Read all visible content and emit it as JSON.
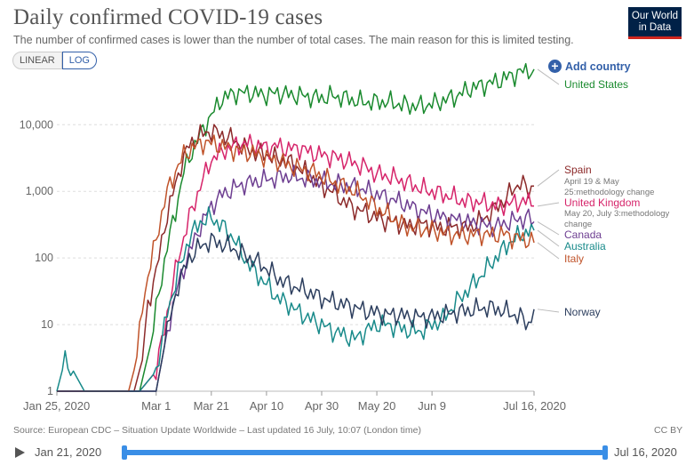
{
  "header": {
    "title": "Daily confirmed COVID-19 cases",
    "subtitle": "The number of confirmed cases is lower than the number of total cases. The main reason for this is limited testing.",
    "logo_line1": "Our World",
    "logo_line2": "in Data"
  },
  "controls": {
    "linear_label": "LINEAR",
    "log_label": "LOG",
    "add_country_label": "Add country"
  },
  "chart_data": {
    "type": "line",
    "title": "Daily confirmed COVID-19 cases",
    "scale": "log",
    "ylim": [
      1,
      60000
    ],
    "y_ticks": [
      1,
      10,
      100,
      1000,
      10000
    ],
    "y_tick_labels": [
      "1",
      "10",
      "100",
      "1,000",
      "10,000"
    ],
    "x_range_days": [
      0,
      173
    ],
    "x_ticks": [
      0,
      36,
      56,
      76,
      96,
      116,
      136,
      173
    ],
    "x_tick_labels": [
      "Jan 25, 2020",
      "Mar 1",
      "Mar 21",
      "Apr 10",
      "Apr 30",
      "May 20",
      "Jun 9",
      "Jul 16, 2020"
    ],
    "series": [
      {
        "name": "United States",
        "color": "#1a8a2e",
        "points": [
          [
            0,
            1
          ],
          [
            10,
            1
          ],
          [
            20,
            1
          ],
          [
            30,
            1
          ],
          [
            34,
            5
          ],
          [
            37,
            30
          ],
          [
            40,
            150
          ],
          [
            43,
            500
          ],
          [
            46,
            2000
          ],
          [
            50,
            5000
          ],
          [
            55,
            12000
          ],
          [
            60,
            25000
          ],
          [
            65,
            30000
          ],
          [
            70,
            30000
          ],
          [
            75,
            28000
          ],
          [
            80,
            30000
          ],
          [
            85,
            28000
          ],
          [
            90,
            27000
          ],
          [
            95,
            25000
          ],
          [
            100,
            27000
          ],
          [
            105,
            25000
          ],
          [
            110,
            22000
          ],
          [
            115,
            22000
          ],
          [
            120,
            22000
          ],
          [
            125,
            20000
          ],
          [
            130,
            19000
          ],
          [
            135,
            20000
          ],
          [
            140,
            23000
          ],
          [
            145,
            27000
          ],
          [
            150,
            35000
          ],
          [
            155,
            40000
          ],
          [
            160,
            45000
          ],
          [
            165,
            55000
          ],
          [
            170,
            65000
          ],
          [
            173,
            68000
          ]
        ]
      },
      {
        "name": "Spain",
        "color": "#8c2a2a",
        "points": [
          [
            0,
            1
          ],
          [
            10,
            1
          ],
          [
            20,
            1
          ],
          [
            28,
            1
          ],
          [
            31,
            3
          ],
          [
            33,
            20
          ],
          [
            36,
            60
          ],
          [
            39,
            300
          ],
          [
            42,
            900
          ],
          [
            45,
            2500
          ],
          [
            48,
            5000
          ],
          [
            52,
            7000
          ],
          [
            56,
            8000
          ],
          [
            60,
            7000
          ],
          [
            64,
            6000
          ],
          [
            68,
            4500
          ],
          [
            72,
            3800
          ],
          [
            76,
            3600
          ],
          [
            80,
            3000
          ],
          [
            84,
            2800
          ],
          [
            88,
            2200
          ],
          [
            92,
            1700
          ],
          [
            96,
            1200
          ],
          [
            100,
            1000
          ],
          [
            104,
            700
          ],
          [
            108,
            550
          ],
          [
            112,
            480
          ],
          [
            116,
            400
          ],
          [
            120,
            350
          ],
          [
            124,
            330
          ],
          [
            128,
            300
          ],
          [
            132,
            330
          ],
          [
            136,
            300
          ],
          [
            140,
            280
          ],
          [
            144,
            300
          ],
          [
            148,
            280
          ],
          [
            152,
            330
          ],
          [
            156,
            420
          ],
          [
            160,
            600
          ],
          [
            164,
            900
          ],
          [
            168,
            1400
          ],
          [
            171,
            1000
          ],
          [
            173,
            1200
          ]
        ]
      },
      {
        "name": "United Kingdom",
        "color": "#d6246a",
        "points": [
          [
            0,
            1
          ],
          [
            10,
            1
          ],
          [
            20,
            1
          ],
          [
            30,
            1
          ],
          [
            36,
            2
          ],
          [
            40,
            15
          ],
          [
            44,
            100
          ],
          [
            48,
            400
          ],
          [
            52,
            1200
          ],
          [
            56,
            3000
          ],
          [
            60,
            4000
          ],
          [
            64,
            4800
          ],
          [
            68,
            5200
          ],
          [
            72,
            5000
          ],
          [
            76,
            4500
          ],
          [
            80,
            4800
          ],
          [
            84,
            4300
          ],
          [
            88,
            4500
          ],
          [
            92,
            3800
          ],
          [
            96,
            3500
          ],
          [
            100,
            3300
          ],
          [
            104,
            3000
          ],
          [
            108,
            2600
          ],
          [
            112,
            2300
          ],
          [
            116,
            1800
          ],
          [
            120,
            1700
          ],
          [
            124,
            1500
          ],
          [
            128,
            1300
          ],
          [
            132,
            1100
          ],
          [
            136,
            1000
          ],
          [
            140,
            900
          ],
          [
            144,
            800
          ],
          [
            148,
            700
          ],
          [
            152,
            700
          ],
          [
            156,
            650
          ],
          [
            160,
            600
          ],
          [
            164,
            650
          ],
          [
            168,
            700
          ],
          [
            171,
            700
          ],
          [
            173,
            600
          ]
        ]
      },
      {
        "name": "Canada",
        "color": "#6d3e91",
        "points": [
          [
            0,
            1
          ],
          [
            10,
            1
          ],
          [
            20,
            1
          ],
          [
            30,
            1
          ],
          [
            36,
            1
          ],
          [
            40,
            8
          ],
          [
            44,
            40
          ],
          [
            48,
            120
          ],
          [
            52,
            300
          ],
          [
            56,
            600
          ],
          [
            60,
            900
          ],
          [
            64,
            1100
          ],
          [
            68,
            1300
          ],
          [
            72,
            1400
          ],
          [
            76,
            1500
          ],
          [
            80,
            1600
          ],
          [
            84,
            1700
          ],
          [
            88,
            1600
          ],
          [
            92,
            1500
          ],
          [
            96,
            1400
          ],
          [
            100,
            1300
          ],
          [
            104,
            1250
          ],
          [
            108,
            1150
          ],
          [
            112,
            1050
          ],
          [
            116,
            900
          ],
          [
            120,
            800
          ],
          [
            124,
            700
          ],
          [
            128,
            600
          ],
          [
            132,
            500
          ],
          [
            136,
            450
          ],
          [
            140,
            400
          ],
          [
            144,
            380
          ],
          [
            148,
            350
          ],
          [
            152,
            330
          ],
          [
            156,
            300
          ],
          [
            160,
            300
          ],
          [
            164,
            350
          ],
          [
            168,
            380
          ],
          [
            171,
            400
          ],
          [
            173,
            350
          ]
        ]
      },
      {
        "name": "Australia",
        "color": "#188a8a",
        "points": [
          [
            0,
            1
          ],
          [
            3,
            3
          ],
          [
            6,
            2
          ],
          [
            10,
            1
          ],
          [
            20,
            1
          ],
          [
            30,
            1
          ],
          [
            36,
            2
          ],
          [
            40,
            15
          ],
          [
            44,
            60
          ],
          [
            48,
            200
          ],
          [
            52,
            350
          ],
          [
            56,
            400
          ],
          [
            60,
            300
          ],
          [
            64,
            200
          ],
          [
            68,
            100
          ],
          [
            72,
            60
          ],
          [
            76,
            40
          ],
          [
            80,
            25
          ],
          [
            84,
            20
          ],
          [
            88,
            15
          ],
          [
            92,
            12
          ],
          [
            96,
            10
          ],
          [
            100,
            8
          ],
          [
            104,
            7
          ],
          [
            108,
            6
          ],
          [
            112,
            8
          ],
          [
            116,
            10
          ],
          [
            120,
            10
          ],
          [
            124,
            9
          ],
          [
            128,
            8
          ],
          [
            132,
            8
          ],
          [
            136,
            10
          ],
          [
            140,
            12
          ],
          [
            144,
            20
          ],
          [
            148,
            30
          ],
          [
            152,
            45
          ],
          [
            156,
            70
          ],
          [
            160,
            110
          ],
          [
            164,
            170
          ],
          [
            168,
            220
          ],
          [
            171,
            250
          ],
          [
            173,
            260
          ]
        ]
      },
      {
        "name": "Italy",
        "color": "#c0532a",
        "points": [
          [
            0,
            1
          ],
          [
            10,
            1
          ],
          [
            20,
            1
          ],
          [
            26,
            1
          ],
          [
            29,
            3
          ],
          [
            31,
            20
          ],
          [
            34,
            80
          ],
          [
            37,
            300
          ],
          [
            40,
            1000
          ],
          [
            43,
            2000
          ],
          [
            46,
            3500
          ],
          [
            50,
            4800
          ],
          [
            54,
            5500
          ],
          [
            58,
            5000
          ],
          [
            62,
            4500
          ],
          [
            66,
            4000
          ],
          [
            70,
            3800
          ],
          [
            74,
            3500
          ],
          [
            78,
            3000
          ],
          [
            82,
            2700
          ],
          [
            86,
            2300
          ],
          [
            90,
            2100
          ],
          [
            94,
            1900
          ],
          [
            98,
            1500
          ],
          [
            102,
            1300
          ],
          [
            106,
            1100
          ],
          [
            110,
            900
          ],
          [
            114,
            650
          ],
          [
            118,
            500
          ],
          [
            122,
            400
          ],
          [
            126,
            300
          ],
          [
            130,
            280
          ],
          [
            134,
            270
          ],
          [
            138,
            250
          ],
          [
            142,
            230
          ],
          [
            146,
            220
          ],
          [
            150,
            220
          ],
          [
            154,
            230
          ],
          [
            158,
            220
          ],
          [
            162,
            230
          ],
          [
            166,
            200
          ],
          [
            170,
            190
          ],
          [
            173,
            170
          ]
        ]
      },
      {
        "name": "Norway",
        "color": "#2c3e5e",
        "points": [
          [
            0,
            1
          ],
          [
            10,
            1
          ],
          [
            20,
            1
          ],
          [
            30,
            1
          ],
          [
            36,
            1
          ],
          [
            40,
            8
          ],
          [
            44,
            40
          ],
          [
            48,
            100
          ],
          [
            52,
            150
          ],
          [
            56,
            180
          ],
          [
            60,
            160
          ],
          [
            64,
            140
          ],
          [
            68,
            110
          ],
          [
            72,
            90
          ],
          [
            76,
            70
          ],
          [
            80,
            50
          ],
          [
            84,
            40
          ],
          [
            88,
            35
          ],
          [
            92,
            30
          ],
          [
            96,
            25
          ],
          [
            100,
            22
          ],
          [
            104,
            20
          ],
          [
            108,
            18
          ],
          [
            112,
            16
          ],
          [
            116,
            15
          ],
          [
            120,
            14
          ],
          [
            124,
            14
          ],
          [
            128,
            13
          ],
          [
            132,
            13
          ],
          [
            136,
            13
          ],
          [
            140,
            14
          ],
          [
            144,
            15
          ],
          [
            148,
            16
          ],
          [
            152,
            17
          ],
          [
            156,
            18
          ],
          [
            160,
            17
          ],
          [
            164,
            15
          ],
          [
            168,
            13
          ],
          [
            171,
            10
          ],
          [
            173,
            17
          ]
        ]
      }
    ],
    "annotations": [
      {
        "series": "Spain",
        "text_line1": "April 19 & May",
        "text_line2": "25:methodology change"
      },
      {
        "series": "United Kingdom",
        "text_line1": "May 20, July 3:methodology",
        "text_line2": "change"
      }
    ]
  },
  "footer": {
    "source": "Source: European CDC – Situation Update Worldwide – Last updated 16 July, 10:07 (London time)",
    "license": "CC BY"
  },
  "timeline": {
    "start_label": "Jan 21, 2020",
    "end_label": "Jul 16, 2020"
  }
}
